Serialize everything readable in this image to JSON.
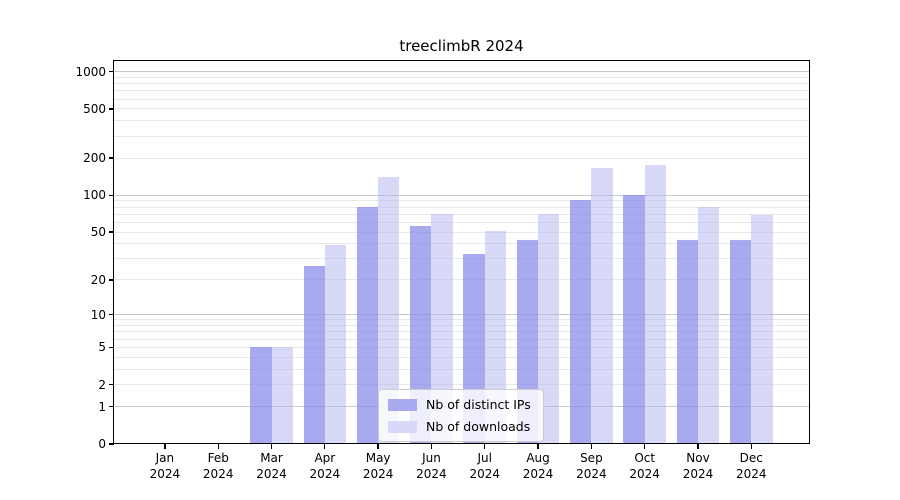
{
  "chart_data": {
    "type": "bar",
    "title": "treeclimbR 2024",
    "categories": [
      "Jan 2024",
      "Feb 2024",
      "Mar 2024",
      "Apr 2024",
      "May 2024",
      "Jun 2024",
      "Jul 2024",
      "Aug 2024",
      "Sep 2024",
      "Oct 2024",
      "Nov 2024",
      "Dec 2024"
    ],
    "series": [
      {
        "name": "Nb of distinct IPs",
        "values": [
          0,
          0,
          5,
          26,
          80,
          56,
          33,
          43,
          91,
          100,
          43,
          43
        ],
        "fill": "rgba(136,136,233,0.72)",
        "legend_color": "#a9a9ef"
      },
      {
        "name": "Nb of downloads",
        "values": [
          0,
          0,
          5,
          39,
          140,
          70,
          51,
          70,
          165,
          177,
          80,
          69
        ],
        "fill": "rgba(177,177,239,0.5)",
        "legend_color": "#d8d8f8"
      }
    ],
    "y_scale": "log1p",
    "ylim": [
      0,
      1240
    ],
    "y_ticks": [
      0,
      1,
      2,
      5,
      10,
      20,
      50,
      100,
      200,
      500,
      1000
    ],
    "y_major_gridlines": [
      1,
      10,
      100,
      1000
    ],
    "y_minor_gridlines": [
      2,
      3,
      4,
      5,
      6,
      7,
      8,
      9,
      20,
      30,
      40,
      50,
      60,
      70,
      80,
      90,
      200,
      300,
      400,
      500,
      600,
      700,
      800,
      900
    ],
    "grid": true,
    "legend_position": "inside-bottom-center",
    "colors": {
      "bar_distinct_ips": "#a9a9ef",
      "bar_downloads": "#d8d8f8",
      "gridline_major": "#c9c9c9",
      "gridline_minor": "#e8e8e8",
      "axis": "#000000",
      "background": "#ffffff"
    }
  }
}
